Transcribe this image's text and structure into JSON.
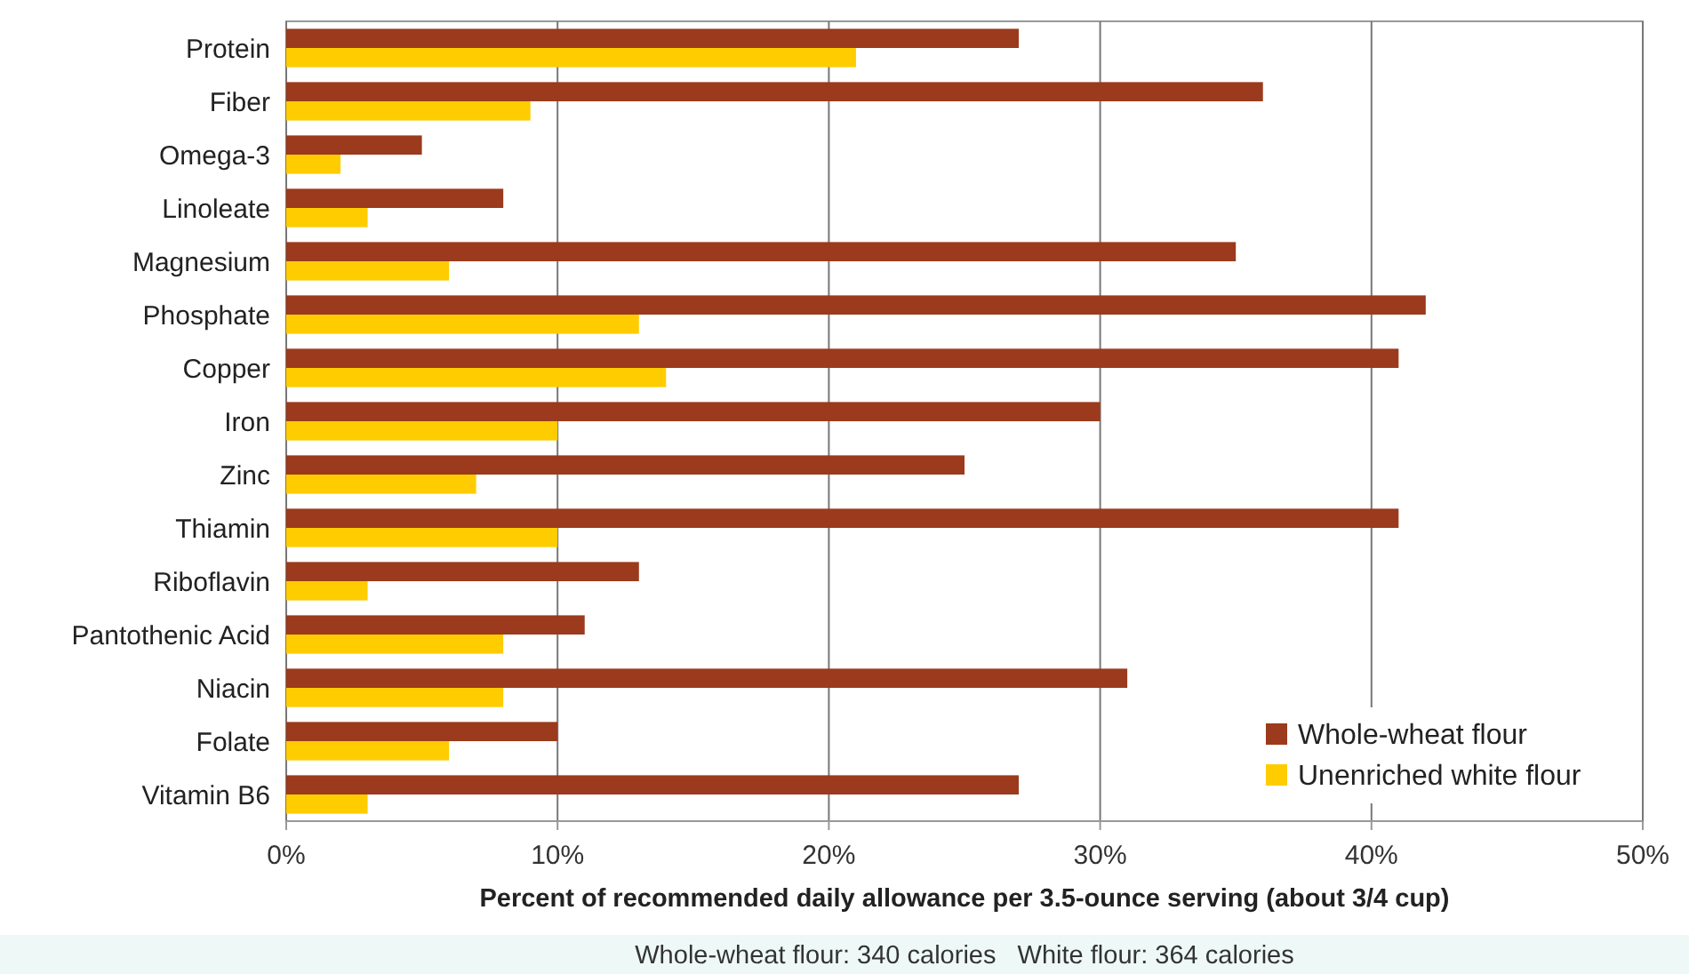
{
  "chart_data": {
    "type": "bar",
    "orientation": "horizontal",
    "xlabel": "Percent of recommended daily allowance per 3.5-ounce serving (about 3/4 cup)",
    "annotations": [
      "Whole-wheat flour: 340 calories   White flour: 364 calories"
    ],
    "categories": [
      "Protein",
      "Fiber",
      "Omega-3",
      "Linoleate",
      "Magnesium",
      "Phosphate",
      "Copper",
      "Iron",
      "Zinc",
      "Thiamin",
      "Riboflavin",
      "Pantothenic Acid",
      "Niacin",
      "Folate",
      "Vitamin B6"
    ],
    "series": [
      {
        "name": "Whole-wheat flour",
        "color": "#9b3a1c",
        "values": [
          27,
          36,
          5,
          8,
          35,
          42,
          41,
          30,
          25,
          41,
          13,
          11,
          31,
          10,
          27
        ]
      },
      {
        "name": "Unenriched white flour",
        "color": "#ffcc00",
        "values": [
          21,
          9,
          2,
          3,
          6,
          13,
          14,
          10,
          7,
          10,
          3,
          8,
          8,
          6,
          3
        ]
      }
    ],
    "xlim": [
      0,
      50
    ],
    "xticks": [
      {
        "value": 0,
        "label": "0%"
      },
      {
        "value": 10,
        "label": "10%"
      },
      {
        "value": 20,
        "label": "20%"
      },
      {
        "value": 30,
        "label": "30%"
      },
      {
        "value": 40,
        "label": "40%"
      },
      {
        "value": 50,
        "label": "50%"
      }
    ],
    "grid": "x",
    "legend": "bottom right"
  }
}
